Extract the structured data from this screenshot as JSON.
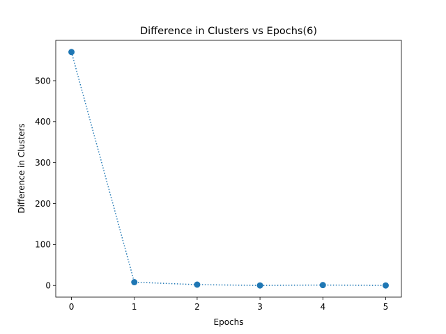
{
  "chart_data": {
    "type": "line",
    "title": "Difference in Clusters vs Epochs(6)",
    "xlabel": "Epochs",
    "ylabel": "Difference in Clusters",
    "x": [
      0,
      1,
      2,
      3,
      4,
      5
    ],
    "series": [
      {
        "values": [
          570,
          8,
          2,
          0,
          1,
          0
        ]
      }
    ],
    "xlim": [
      -0.25,
      5.25
    ],
    "ylim": [
      -28.5,
      598.5
    ],
    "xticks": [
      0,
      1,
      2,
      3,
      4,
      5
    ],
    "yticks": [
      0,
      100,
      200,
      300,
      400,
      500
    ],
    "line_style": "dotted",
    "marker": "circle",
    "grid": false,
    "legend": "none",
    "color": "#1f77b4"
  }
}
